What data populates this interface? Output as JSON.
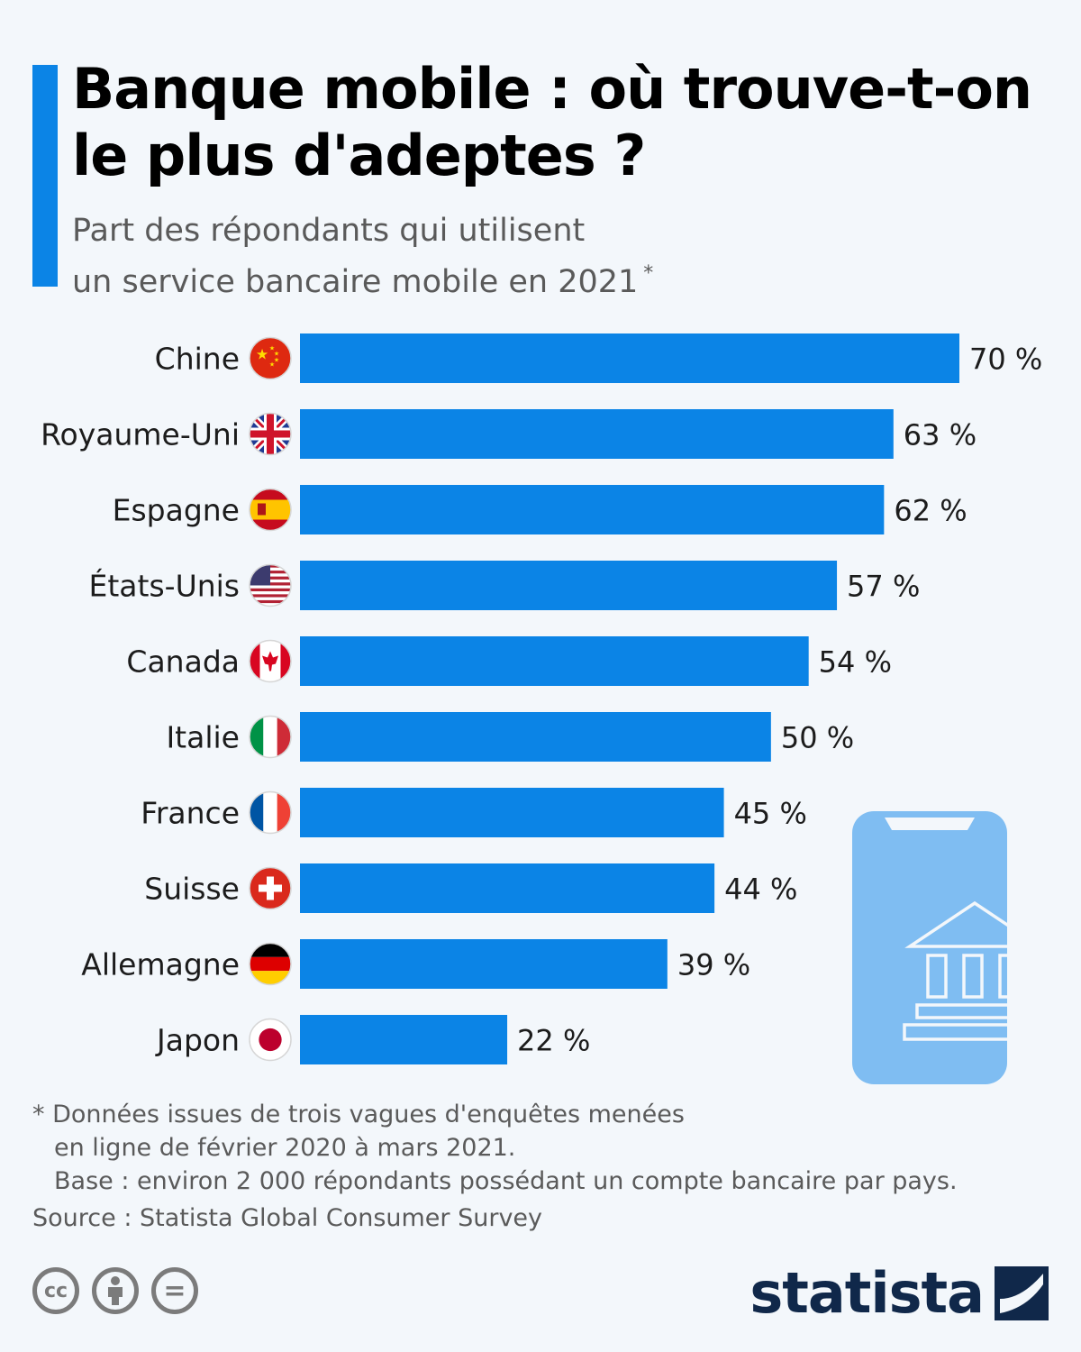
{
  "header": {
    "title": "Banque mobile : où trouve-t-on le plus d'adeptes ?",
    "subtitle_line1": "Part des répondants qui utilisent",
    "subtitle_line2": "un service bancaire mobile en 2021",
    "subtitle_mark": "*"
  },
  "chart_data": {
    "type": "bar",
    "orientation": "horizontal",
    "title": "Banque mobile : où trouve-t-on le plus d'adeptes ?",
    "categories": [
      "Chine",
      "Royaume-Uni",
      "Espagne",
      "États-Unis",
      "Canada",
      "Italie",
      "France",
      "Suisse",
      "Allemagne",
      "Japon"
    ],
    "values": [
      70,
      63,
      62,
      57,
      54,
      50,
      45,
      44,
      39,
      22
    ],
    "value_labels": [
      "70 %",
      "63 %",
      "62 %",
      "57 %",
      "54 %",
      "50 %",
      "45 %",
      "44 %",
      "39 %",
      "22 %"
    ],
    "flags": [
      "flag-china",
      "flag-united-kingdom",
      "flag-spain",
      "flag-united-states",
      "flag-canada",
      "flag-italy",
      "flag-france",
      "flag-switzerland",
      "flag-germany",
      "flag-japan"
    ],
    "unit": "%",
    "xlim": [
      0,
      70
    ],
    "grid": false,
    "bar_color": "#0b84e6"
  },
  "footer": {
    "note_line1": "* Données issues de trois vagues d'enquêtes menées",
    "note_line2": "en ligne de février 2020 à mars 2021.",
    "note_line3": "Base : environ 2 000 répondants possédant un compte bancaire par pays.",
    "source": "Source : Statista Global Consumer Survey",
    "license_icons": [
      "creative-commons-icon",
      "attribution-icon",
      "no-derivatives-icon"
    ],
    "cc_label": "cc",
    "nd_label": "="
  },
  "brand": {
    "name": "statista",
    "logo_icon": "statista-logo-icon"
  },
  "illustration": {
    "icon": "mobile-bank-icon"
  },
  "colors": {
    "accent": "#0b84e6",
    "phone": "#7fbdf2",
    "text": "#1c1c1c",
    "muted": "#5a5a5a",
    "brand": "#10284a"
  }
}
